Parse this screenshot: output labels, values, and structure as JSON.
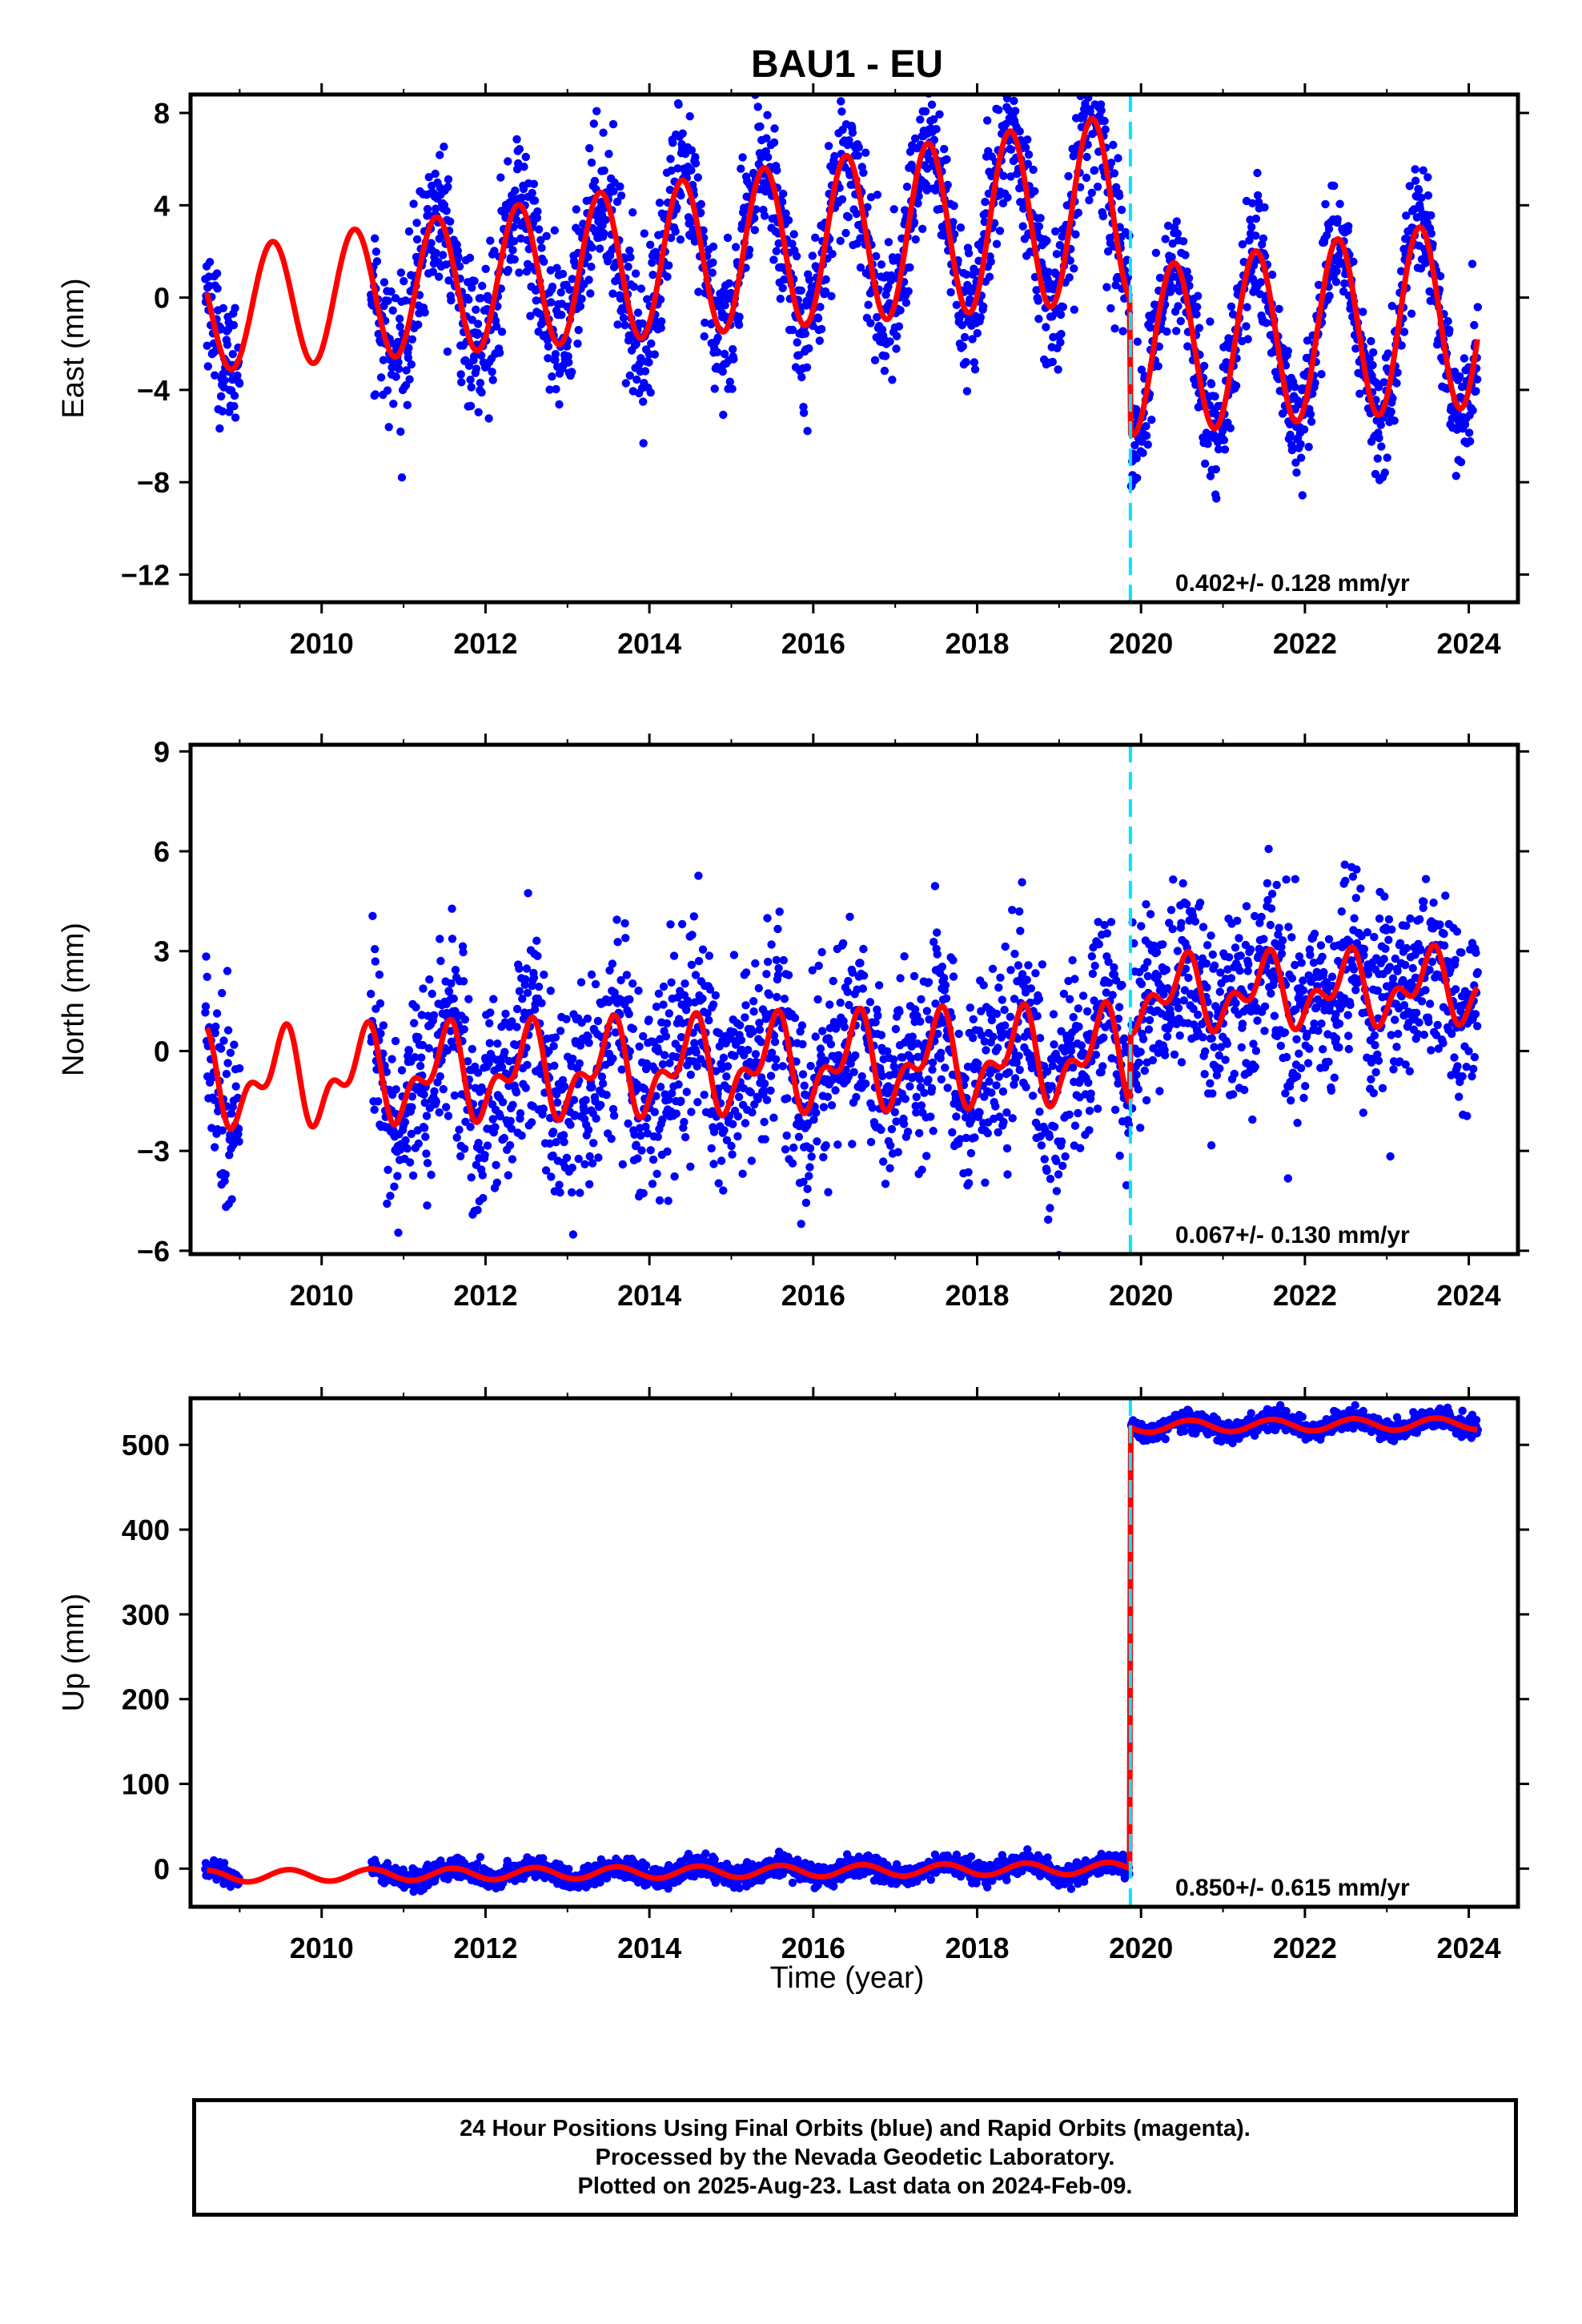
{
  "title": "BAU1 - EU",
  "xlabel": "Time (year)",
  "colors": {
    "data": "#0000ff",
    "model": "#ff0000",
    "offset": "#00e5ff",
    "frame": "#000000"
  },
  "chart_data": [
    {
      "type": "scatter",
      "panel": "east",
      "ylabel": "East (mm)",
      "xlim": [
        2008.4,
        2024.6
      ],
      "ylim": [
        -13.2,
        8.8
      ],
      "xticks": [
        "2010",
        "2012",
        "2014",
        "2016",
        "2018",
        "2020",
        "2022",
        "2024"
      ],
      "yticks": [
        "8",
        "4",
        "0",
        "−4",
        "−8",
        "−12"
      ],
      "yticks_values": [
        8,
        4,
        0,
        -4,
        -8,
        -12
      ],
      "annotation": "0.402+/- 0.128 mm/yr",
      "offset_x": 2019.87,
      "series": [
        {
          "name": "Final Orbits (blue)",
          "kind": "points",
          "segments": [
            {
              "x0": 2008.58,
              "x1": 2009.0,
              "spread": 1.4
            },
            {
              "x0": 2010.6,
              "x1": 2019.86,
              "spread": 1.6
            },
            {
              "x0": 2019.88,
              "x1": 2024.11,
              "spread": 1.3
            }
          ]
        },
        {
          "name": "model",
          "kind": "line",
          "pieces": [
            {
              "x0": 2008.6,
              "x1": 2019.865,
              "base": -0.6,
              "slope": 0.402,
              "amp": 2.6,
              "amp_growth": 0.05,
              "phase_peak": 0.4
            },
            {
              "x0": 2019.875,
              "x1": 2024.11,
              "base": -6.9,
              "slope": 0.402,
              "amp": 2.3,
              "amp_growth": 0.05,
              "phase_peak": 0.4
            }
          ]
        }
      ]
    },
    {
      "type": "scatter",
      "panel": "north",
      "ylabel": "North (mm)",
      "xlim": [
        2008.4,
        2024.6
      ],
      "ylim": [
        -6.1,
        9.2
      ],
      "xticks": [
        "2010",
        "2012",
        "2014",
        "2016",
        "2018",
        "2020",
        "2022",
        "2024"
      ],
      "yticks": [
        "9",
        "6",
        "3",
        "0",
        "−3",
        "−6"
      ],
      "yticks_values": [
        9,
        6,
        3,
        0,
        -3,
        -6
      ],
      "annotation": "0.067+/- 0.130 mm/yr",
      "offset_x": 2019.87,
      "series": [
        {
          "name": "Final Orbits (blue)",
          "kind": "points",
          "segments": [
            {
              "x0": 2008.58,
              "x1": 2009.0,
              "spread": 1.5
            },
            {
              "x0": 2010.6,
              "x1": 2019.86,
              "spread": 1.5
            },
            {
              "x0": 2019.88,
              "x1": 2024.11,
              "spread": 1.4
            }
          ]
        },
        {
          "name": "model",
          "kind": "line",
          "pieces": [
            {
              "x0": 2008.6,
              "x1": 2019.865,
              "base": -0.9,
              "slope": 0.067,
              "amp": 1.1,
              "amp_growth": 0.0,
              "phase_peak": 0.5,
              "semi": 0.7
            },
            {
              "x0": 2019.875,
              "x1": 2024.11,
              "base": 0.9,
              "slope": 0.067,
              "amp": 0.8,
              "amp_growth": 0.0,
              "phase_peak": 0.5,
              "semi": 0.6
            }
          ]
        }
      ]
    },
    {
      "type": "scatter",
      "panel": "up",
      "ylabel": "Up (mm)",
      "xlim": [
        2008.4,
        2024.6
      ],
      "ylim": [
        -45,
        555
      ],
      "xticks": [
        "2010",
        "2012",
        "2014",
        "2016",
        "2018",
        "2020",
        "2022",
        "2024"
      ],
      "yticks": [
        "500",
        "400",
        "300",
        "200",
        "100",
        "0"
      ],
      "yticks_values": [
        500,
        400,
        300,
        200,
        100,
        0
      ],
      "annotation": "0.850+/- 0.615 mm/yr",
      "offset_x": 2019.87,
      "series": [
        {
          "name": "Final Orbits (blue)",
          "kind": "points",
          "segments": [
            {
              "x0": 2008.58,
              "x1": 2009.0,
              "spread": 5
            },
            {
              "x0": 2010.6,
              "x1": 2019.86,
              "spread": 6
            },
            {
              "x0": 2019.88,
              "x1": 2024.11,
              "spread": 6
            }
          ]
        },
        {
          "name": "model",
          "kind": "line",
          "pieces": [
            {
              "x0": 2008.6,
              "x1": 2019.865,
              "base": -9,
              "slope": 0.85,
              "amp": 7,
              "amp_growth": 0.0,
              "phase_peak": 0.6
            },
            {
              "x0": 2019.875,
              "x1": 2024.11,
              "base": 512,
              "slope": 0.85,
              "amp": 7,
              "amp_growth": 0.0,
              "phase_peak": 0.6
            }
          ]
        }
      ]
    }
  ],
  "footer": {
    "line1": "24 Hour Positions Using Final Orbits (blue) and Rapid Orbits (magenta).",
    "line2": "Processed by the Nevada Geodetic Laboratory.",
    "line3": "Plotted on 2025-Aug-23. Last data on 2024-Feb-09."
  }
}
